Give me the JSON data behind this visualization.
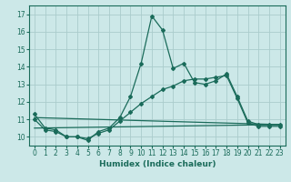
{
  "xlabel": "Humidex (Indice chaleur)",
  "bg_color": "#cce8e8",
  "grid_color": "#aacccc",
  "line_color": "#1a6b5a",
  "xlim": [
    -0.5,
    23.5
  ],
  "ylim": [
    9.5,
    17.5
  ],
  "yticks": [
    10,
    11,
    12,
    13,
    14,
    15,
    16,
    17
  ],
  "xticks": [
    0,
    1,
    2,
    3,
    4,
    5,
    6,
    7,
    8,
    9,
    10,
    11,
    12,
    13,
    14,
    15,
    16,
    17,
    18,
    19,
    20,
    21,
    22,
    23
  ],
  "series": [
    {
      "x": [
        0,
        1,
        2,
        3,
        4,
        5,
        6,
        7,
        8,
        9,
        10,
        11,
        12,
        13,
        14,
        15,
        16,
        17,
        18,
        19,
        20,
        21,
        22,
        23
      ],
      "y": [
        11.3,
        10.5,
        10.4,
        10.0,
        10.0,
        9.8,
        10.3,
        10.5,
        11.1,
        12.3,
        14.2,
        16.9,
        16.1,
        13.9,
        14.2,
        13.1,
        13.0,
        13.2,
        13.6,
        12.3,
        10.9,
        10.7,
        10.7,
        10.7
      ],
      "marker": "D",
      "markersize": 2.0,
      "linewidth": 0.9
    },
    {
      "x": [
        0,
        1,
        2,
        3,
        4,
        5,
        6,
        7,
        8,
        9,
        10,
        11,
        12,
        13,
        14,
        15,
        16,
        17,
        18,
        19,
        20,
        21,
        22,
        23
      ],
      "y": [
        11.0,
        10.4,
        10.3,
        10.0,
        10.0,
        9.9,
        10.2,
        10.4,
        10.9,
        11.4,
        11.9,
        12.3,
        12.7,
        12.9,
        13.2,
        13.3,
        13.3,
        13.4,
        13.5,
        12.2,
        10.8,
        10.6,
        10.6,
        10.6
      ],
      "marker": "D",
      "markersize": 2.0,
      "linewidth": 0.9
    },
    {
      "x": [
        0,
        23
      ],
      "y": [
        10.5,
        10.7
      ],
      "marker": null,
      "linewidth": 0.9
    },
    {
      "x": [
        0,
        23
      ],
      "y": [
        11.1,
        10.7
      ],
      "marker": null,
      "linewidth": 0.9
    }
  ]
}
